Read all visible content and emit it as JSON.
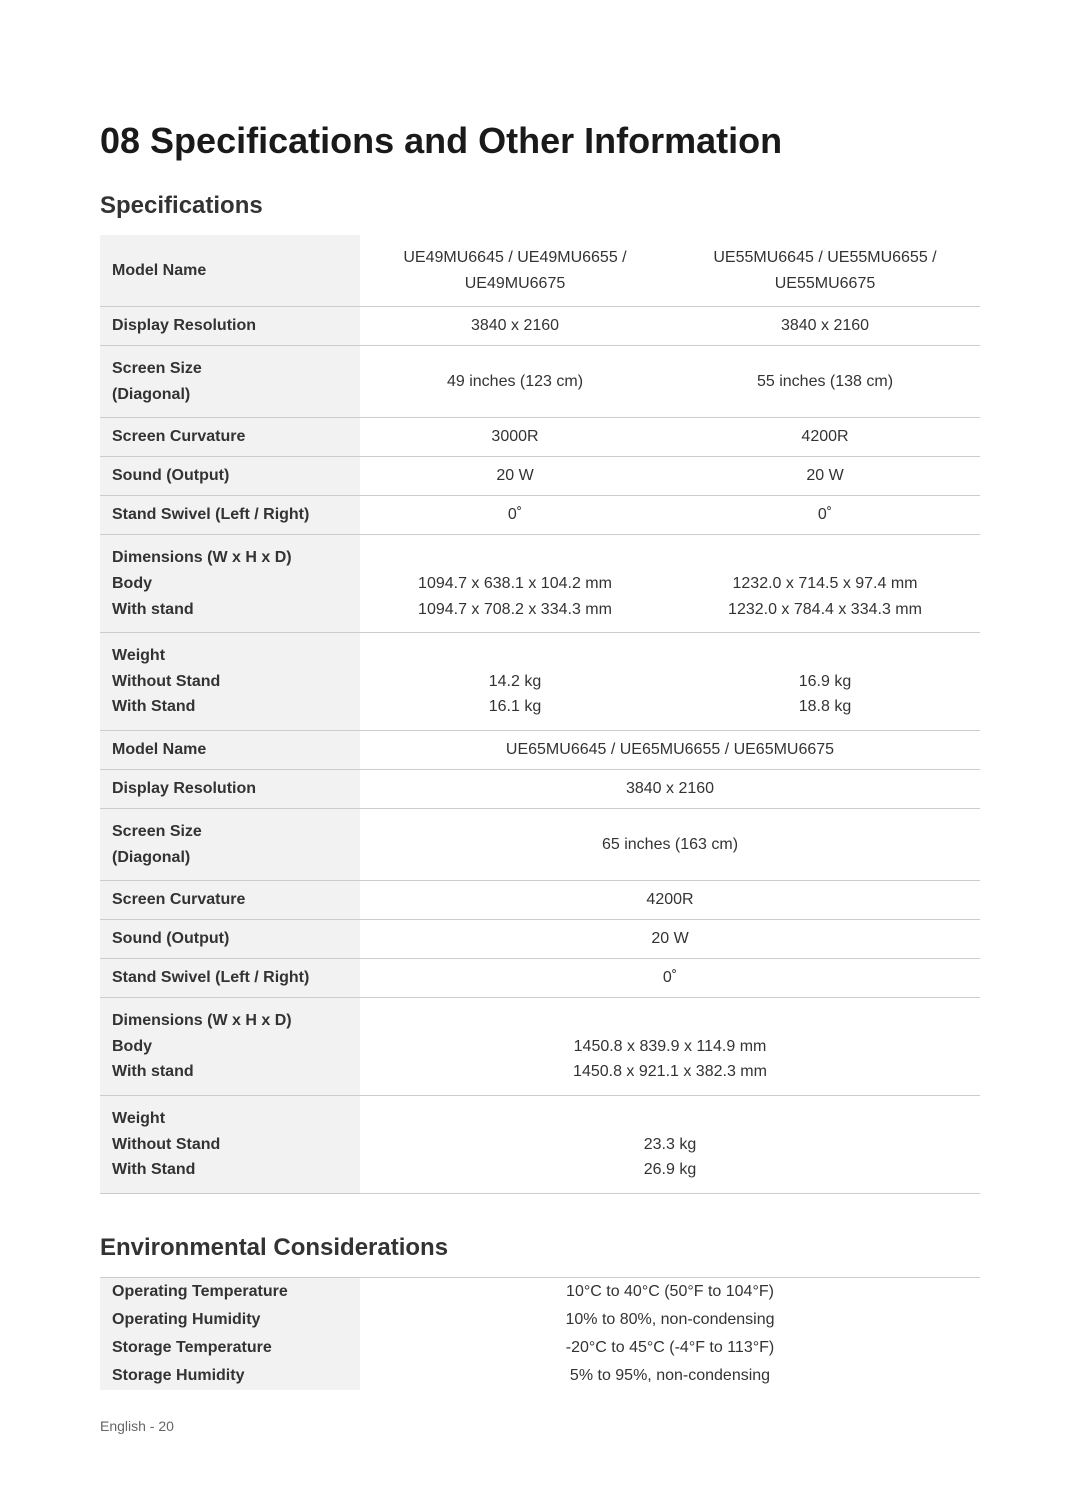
{
  "heading": "08   Specifications and Other Information",
  "specs": {
    "title": "Specifications",
    "rows1": {
      "modelName": {
        "label": "Model Name",
        "col1_line1": "UE49MU6645 / UE49MU6655 /",
        "col1_line2": "UE49MU6675",
        "col2_line1": "UE55MU6645 / UE55MU6655 /",
        "col2_line2": "UE55MU6675"
      },
      "displayRes": {
        "label": "Display Resolution",
        "col1": "3840 x 2160",
        "col2": "3840 x 2160"
      },
      "screenSize": {
        "label_line1": "Screen Size",
        "label_line2": "(Diagonal)",
        "col1": "49 inches (123 cm)",
        "col2": "55 inches (138 cm)"
      },
      "curvature": {
        "label": "Screen Curvature",
        "col1": "3000R",
        "col2": "4200R"
      },
      "sound": {
        "label": "Sound (Output)",
        "col1": "20 W",
        "col2": "20 W"
      },
      "swivel": {
        "label": "Stand Swivel (Left / Right)",
        "col1": "0˚",
        "col2": "0˚"
      },
      "dimensions": {
        "label_line1": "Dimensions (W x H x D)",
        "label_line2": "Body",
        "label_line3": "With stand",
        "col1_line1": "1094.7 x 638.1 x 104.2 mm",
        "col1_line2": "1094.7 x 708.2 x 334.3 mm",
        "col2_line1": "1232.0 x 714.5 x 97.4 mm",
        "col2_line2": "1232.0 x 784.4 x 334.3 mm"
      },
      "weight": {
        "label_line1": "Weight",
        "label_line2": "Without Stand",
        "label_line3": "With Stand",
        "col1_line1": "14.2 kg",
        "col1_line2": "16.1 kg",
        "col2_line1": "16.9 kg",
        "col2_line2": "18.8 kg"
      }
    },
    "rows2": {
      "modelName": {
        "label": "Model Name",
        "value": "UE65MU6645 / UE65MU6655 / UE65MU6675"
      },
      "displayRes": {
        "label": "Display Resolution",
        "value": "3840 x 2160"
      },
      "screenSize": {
        "label_line1": "Screen Size",
        "label_line2": "(Diagonal)",
        "value": "65 inches (163 cm)"
      },
      "curvature": {
        "label": "Screen Curvature",
        "value": "4200R"
      },
      "sound": {
        "label": "Sound (Output)",
        "value": "20 W"
      },
      "swivel": {
        "label": "Stand Swivel (Left / Right)",
        "value": "0˚"
      },
      "dimensions": {
        "label_line1": "Dimensions (W x H x D)",
        "label_line2": "Body",
        "label_line3": "With stand",
        "value_line1": "1450.8 x 839.9 x 114.9 mm",
        "value_line2": "1450.8 x 921.1 x 382.3 mm"
      },
      "weight": {
        "label_line1": "Weight",
        "label_line2": "Without Stand",
        "label_line3": "With Stand",
        "value_line1": "23.3 kg",
        "value_line2": "26.9 kg"
      }
    }
  },
  "env": {
    "title": "Environmental Considerations",
    "rows": {
      "opTemp": {
        "label": "Operating Temperature",
        "value": "10°C to 40°C (50°F to 104°F)"
      },
      "opHumidity": {
        "label": "Operating Humidity",
        "value": "10% to 80%, non-condensing"
      },
      "storTemp": {
        "label": "Storage Temperature",
        "value": "-20°C to 45°C (-4°F to 113°F)"
      },
      "storHumidity": {
        "label": "Storage Humidity",
        "value": "5% to 95%, non-condensing"
      }
    }
  },
  "footer": "English - 20"
}
